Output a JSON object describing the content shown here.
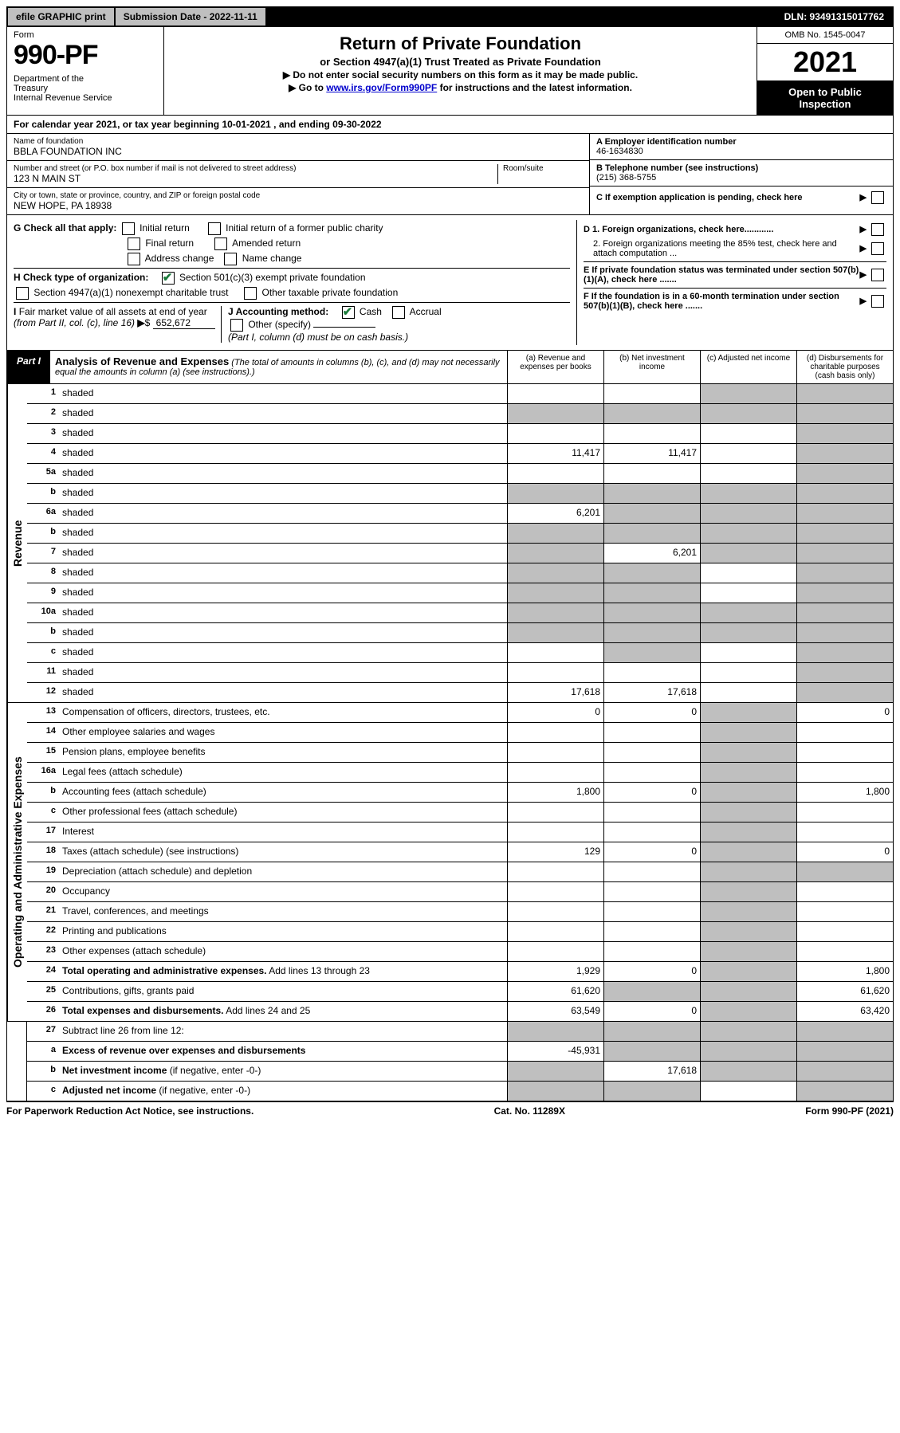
{
  "topbar": {
    "efile": "efile GRAPHIC print",
    "submission": "Submission Date - 2022-11-11",
    "dln": "DLN: 93491315017762"
  },
  "header": {
    "form_label": "Form",
    "form_number": "990-PF",
    "dept": "Department of the Treasury\nInternal Revenue Service",
    "title": "Return of Private Foundation",
    "subtitle": "or Section 4947(a)(1) Trust Treated as Private Foundation",
    "note1": "▶ Do not enter social security numbers on this form as it may be made public.",
    "note2_pre": "▶ Go to ",
    "note2_link": "www.irs.gov/Form990PF",
    "note2_post": " for instructions and the latest information.",
    "omb": "OMB No. 1545-0047",
    "year": "2021",
    "open_public": "Open to Public Inspection"
  },
  "calyear": "For calendar year 2021, or tax year beginning 10-01-2021          , and ending 09-30-2022",
  "info": {
    "name_label": "Name of foundation",
    "name": "BBLA FOUNDATION INC",
    "addr_label": "Number and street (or P.O. box number if mail is not delivered to street address)",
    "addr": "123 N MAIN ST",
    "room_label": "Room/suite",
    "city_label": "City or town, state or province, country, and ZIP or foreign postal code",
    "city": "NEW HOPE, PA  18938",
    "A_label": "A Employer identification number",
    "A_val": "46-1634830",
    "B_label": "B Telephone number (see instructions)",
    "B_val": "(215) 368-5755",
    "C_label": "C If exemption application is pending, check here"
  },
  "checks": {
    "G": "G Check all that apply:",
    "G_opts": [
      "Initial return",
      "Final return",
      "Address change",
      "Initial return of a former public charity",
      "Amended return",
      "Name change"
    ],
    "H": "H Check type of organization:",
    "H_501c3": "Section 501(c)(3) exempt private foundation",
    "H_4947": "Section 4947(a)(1) nonexempt charitable trust",
    "H_other": "Other taxable private foundation",
    "I": "I Fair market value of all assets at end of year (from Part II, col. (c), line 16)",
    "I_val": "652,672",
    "J": "J Accounting method:",
    "J_cash": "Cash",
    "J_accrual": "Accrual",
    "J_other": "Other (specify)",
    "J_note": "(Part I, column (d) must be on cash basis.)",
    "D1": "D 1. Foreign organizations, check here............",
    "D2": "2. Foreign organizations meeting the 85% test, check here and attach computation ...",
    "E": "E If private foundation status was terminated under section 507(b)(1)(A), check here .......",
    "F": "F If the foundation is in a 60-month termination under section 507(b)(1)(B), check here ......."
  },
  "part1": {
    "label": "Part I",
    "title": "Analysis of Revenue and Expenses",
    "title_note": "(The total of amounts in columns (b), (c), and (d) may not necessarily equal the amounts in column (a) (see instructions).)",
    "cols": {
      "a": "(a) Revenue and expenses per books",
      "b": "(b) Net investment income",
      "c": "(c) Adjusted net income",
      "d": "(d) Disbursements for charitable purposes (cash basis only)"
    }
  },
  "revenue_label": "Revenue",
  "expenses_label": "Operating and Administrative Expenses",
  "rows": [
    {
      "n": "1",
      "d": "shaded",
      "a": "",
      "b": "",
      "c": "shaded"
    },
    {
      "n": "2",
      "d": "shaded",
      "a": "shaded",
      "b": "shaded",
      "c": "shaded"
    },
    {
      "n": "3",
      "d": "shaded",
      "a": "",
      "b": "",
      "c": ""
    },
    {
      "n": "4",
      "d": "shaded",
      "a": "11,417",
      "b": "11,417",
      "c": ""
    },
    {
      "n": "5a",
      "d": "shaded",
      "a": "",
      "b": "",
      "c": ""
    },
    {
      "n": "b",
      "d": "shaded",
      "a": "shaded",
      "b": "shaded",
      "c": "shaded"
    },
    {
      "n": "6a",
      "d": "shaded",
      "a": "6,201",
      "b": "shaded",
      "c": "shaded"
    },
    {
      "n": "b",
      "d": "shaded",
      "a": "shaded",
      "b": "shaded",
      "c": "shaded"
    },
    {
      "n": "7",
      "d": "shaded",
      "a": "shaded",
      "b": "6,201",
      "c": "shaded"
    },
    {
      "n": "8",
      "d": "shaded",
      "a": "shaded",
      "b": "shaded",
      "c": ""
    },
    {
      "n": "9",
      "d": "shaded",
      "a": "shaded",
      "b": "shaded",
      "c": ""
    },
    {
      "n": "10a",
      "d": "shaded",
      "a": "shaded",
      "b": "shaded",
      "c": "shaded"
    },
    {
      "n": "b",
      "d": "shaded",
      "a": "shaded",
      "b": "shaded",
      "c": "shaded"
    },
    {
      "n": "c",
      "d": "shaded",
      "a": "",
      "b": "shaded",
      "c": ""
    },
    {
      "n": "11",
      "d": "shaded",
      "a": "",
      "b": "",
      "c": ""
    },
    {
      "n": "12",
      "d": "shaded",
      "a": "17,618",
      "b": "17,618",
      "c": "",
      "divider": true
    }
  ],
  "exp_rows": [
    {
      "n": "13",
      "d": "Compensation of officers, directors, trustees, etc.",
      "a": "0",
      "b": "0",
      "c": "shaded",
      "dv": "0"
    },
    {
      "n": "14",
      "d": "Other employee salaries and wages",
      "a": "",
      "b": "",
      "c": "shaded",
      "dv": ""
    },
    {
      "n": "15",
      "d": "Pension plans, employee benefits",
      "a": "",
      "b": "",
      "c": "shaded",
      "dv": ""
    },
    {
      "n": "16a",
      "d": "Legal fees (attach schedule)",
      "a": "",
      "b": "",
      "c": "shaded",
      "dv": ""
    },
    {
      "n": "b",
      "d": "Accounting fees (attach schedule)",
      "a": "1,800",
      "b": "0",
      "c": "shaded",
      "dv": "1,800"
    },
    {
      "n": "c",
      "d": "Other professional fees (attach schedule)",
      "a": "",
      "b": "",
      "c": "shaded",
      "dv": ""
    },
    {
      "n": "17",
      "d": "Interest",
      "a": "",
      "b": "",
      "c": "shaded",
      "dv": ""
    },
    {
      "n": "18",
      "d": "Taxes (attach schedule) (see instructions)",
      "a": "129",
      "b": "0",
      "c": "shaded",
      "dv": "0"
    },
    {
      "n": "19",
      "d": "Depreciation (attach schedule) and depletion",
      "a": "",
      "b": "",
      "c": "shaded",
      "dv": "shaded"
    },
    {
      "n": "20",
      "d": "Occupancy",
      "a": "",
      "b": "",
      "c": "shaded",
      "dv": ""
    },
    {
      "n": "21",
      "d": "Travel, conferences, and meetings",
      "a": "",
      "b": "",
      "c": "shaded",
      "dv": ""
    },
    {
      "n": "22",
      "d": "Printing and publications",
      "a": "",
      "b": "",
      "c": "shaded",
      "dv": ""
    },
    {
      "n": "23",
      "d": "Other expenses (attach schedule)",
      "a": "",
      "b": "",
      "c": "shaded",
      "dv": ""
    },
    {
      "n": "24",
      "d": "<b>Total operating and administrative expenses.</b> Add lines 13 through 23",
      "a": "1,929",
      "b": "0",
      "c": "shaded",
      "dv": "1,800"
    },
    {
      "n": "25",
      "d": "Contributions, gifts, grants paid",
      "a": "61,620",
      "b": "shaded",
      "c": "shaded",
      "dv": "61,620"
    },
    {
      "n": "26",
      "d": "<b>Total expenses and disbursements.</b> Add lines 24 and 25",
      "a": "63,549",
      "b": "0",
      "c": "shaded",
      "dv": "63,420",
      "divider": true
    }
  ],
  "final_rows": [
    {
      "n": "27",
      "d": "Subtract line 26 from line 12:",
      "a": "shaded",
      "b": "shaded",
      "c": "shaded",
      "dv": "shaded"
    },
    {
      "n": "a",
      "d": "<b>Excess of revenue over expenses and disbursements</b>",
      "a": "-45,931",
      "b": "shaded",
      "c": "shaded",
      "dv": "shaded"
    },
    {
      "n": "b",
      "d": "<b>Net investment income</b> (if negative, enter -0-)",
      "a": "shaded",
      "b": "17,618",
      "c": "shaded",
      "dv": "shaded"
    },
    {
      "n": "c",
      "d": "<b>Adjusted net income</b> (if negative, enter -0-)",
      "a": "shaded",
      "b": "shaded",
      "c": "",
      "dv": "shaded"
    }
  ],
  "footer": {
    "left": "For Paperwork Reduction Act Notice, see instructions.",
    "mid": "Cat. No. 11289X",
    "right": "Form 990-PF (2021)"
  }
}
